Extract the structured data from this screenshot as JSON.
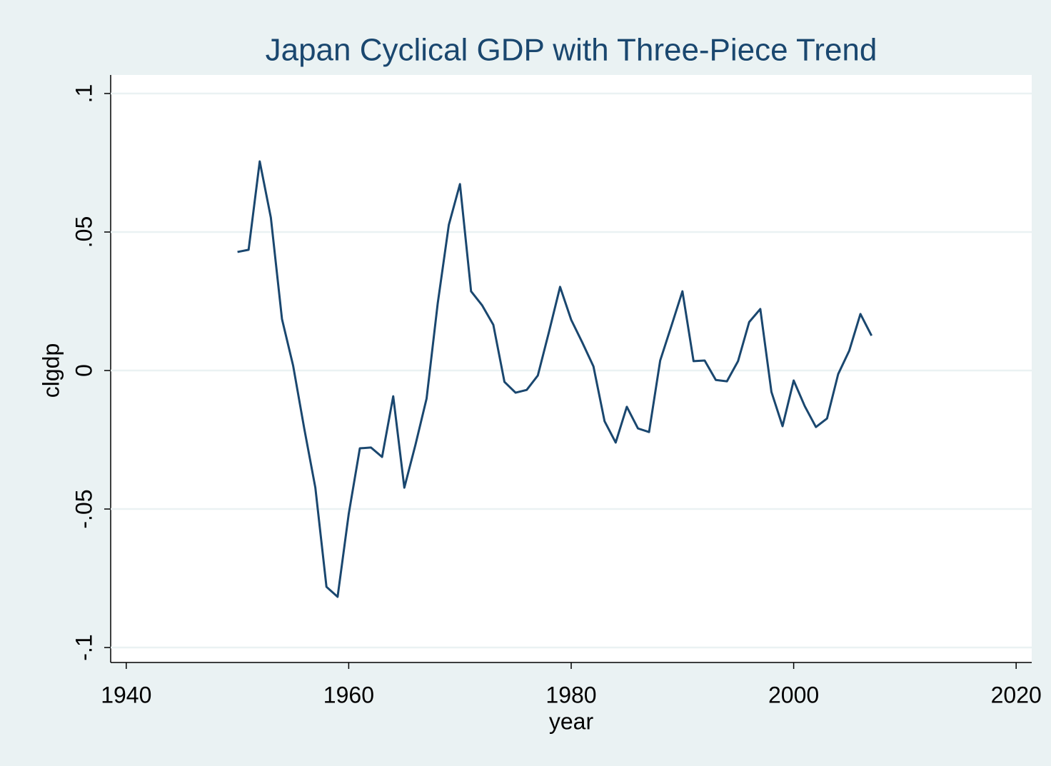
{
  "chart_data": {
    "type": "line",
    "title": "Japan Cyclical GDP with Three-Piece Trend",
    "x_label": "year",
    "y_label": "clgdp",
    "x": [
      1950,
      1951,
      1952,
      1953,
      1954,
      1955,
      1956,
      1957,
      1958,
      1959,
      1960,
      1961,
      1962,
      1963,
      1964,
      1965,
      1966,
      1967,
      1968,
      1969,
      1970,
      1971,
      1972,
      1973,
      1974,
      1975,
      1976,
      1977,
      1978,
      1979,
      1980,
      1981,
      1982,
      1983,
      1984,
      1985,
      1986,
      1987,
      1988,
      1989,
      1990,
      1991,
      1992,
      1993,
      1994,
      1995,
      1996,
      1997,
      1998,
      1999,
      2000,
      2001,
      2002,
      2003,
      2004,
      2005,
      2006,
      2007
    ],
    "series": [
      {
        "name": "clgdp",
        "color": "#1a476f",
        "values": [
          0.0428,
          0.0436,
          0.0755,
          0.0552,
          0.0186,
          0.0018,
          -0.0209,
          -0.0423,
          -0.0781,
          -0.0817,
          -0.0518,
          -0.0281,
          -0.0278,
          -0.0312,
          -0.0093,
          -0.0423,
          -0.0268,
          -0.0101,
          0.0242,
          0.0526,
          0.0673,
          0.0286,
          0.0235,
          0.0165,
          -0.0041,
          -0.008,
          -0.007,
          -0.0018,
          0.0139,
          0.0302,
          0.0183,
          0.0101,
          0.0015,
          -0.0183,
          -0.026,
          -0.0131,
          -0.0209,
          -0.0222,
          0.0036,
          0.016,
          0.0286,
          0.0034,
          0.0036,
          -0.0034,
          -0.0039,
          0.0034,
          0.0175,
          0.0222,
          -0.0077,
          -0.0201,
          -0.0036,
          -0.0129,
          -0.0204,
          -0.0173,
          -0.0013,
          0.0072,
          0.0204,
          0.0126
        ]
      }
    ],
    "xlim": [
      1938.6,
      2021.4
    ],
    "xticks": [
      1940,
      1960,
      1980,
      2000,
      2020
    ],
    "ylim": [
      -0.1054,
      0.1067
    ],
    "yticks": [
      {
        "value": -0.1,
        "label": "-.1"
      },
      {
        "value": -0.05,
        "label": "-.05"
      },
      0,
      {
        "value": 0.05,
        "label": ".05"
      },
      {
        "value": 0.1,
        "label": ".1"
      }
    ],
    "grid": true
  }
}
